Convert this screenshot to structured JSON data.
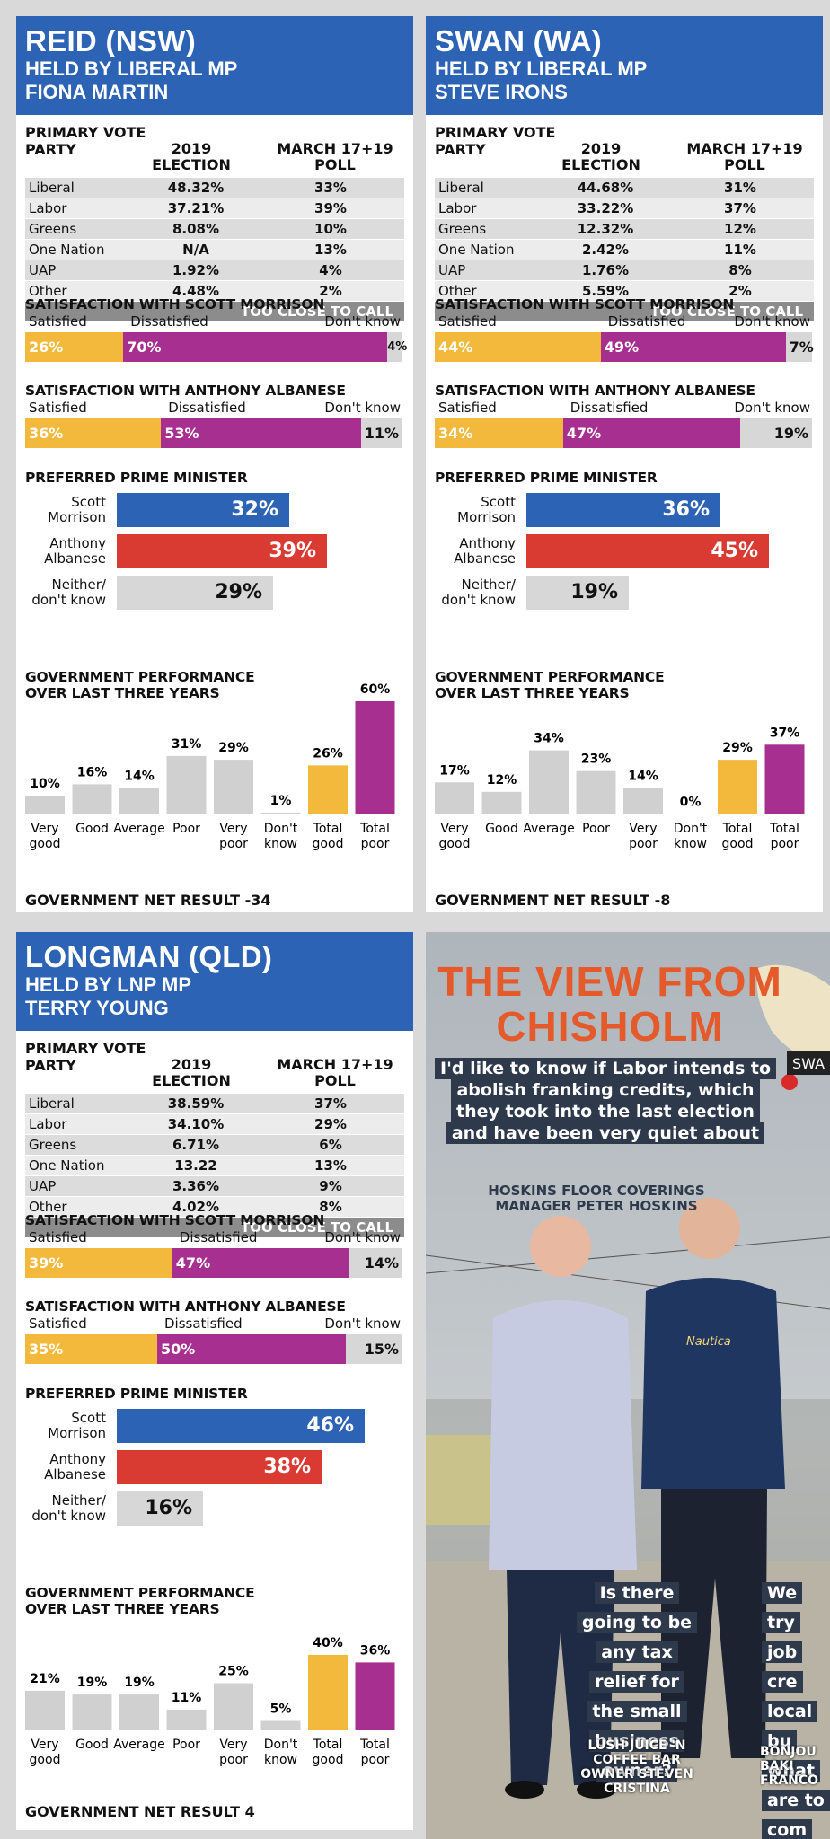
{
  "labels": {
    "primary_vote": "PRIMARY VOTE",
    "party": "PARTY",
    "col_2019": [
      "2019",
      "ELECTION"
    ],
    "col_poll": [
      "MARCH 17+19",
      "POLL"
    ],
    "too_close": "TOO CLOSE TO CALL",
    "sat_morrison": "SATISFACTION WITH SCOTT MORRISON",
    "sat_albanese": "SATISFACTION WITH ANTHONY ALBANESE",
    "satisfied": "Satisfied",
    "dissatisfied": "Dissatisfied",
    "dont_know": "Don't know",
    "ppm": "PREFERRED PRIME MINISTER",
    "ppm_names": [
      [
        "Scott",
        "Morrison"
      ],
      [
        "Anthony",
        "Albanese"
      ],
      [
        "Neither/",
        "don't know"
      ]
    ],
    "gov_perf": [
      "GOVERNMENT PERFORMANCE",
      "OVER LAST THREE YEARS"
    ],
    "gov_cats": [
      [
        "Very",
        "good"
      ],
      [
        "Good"
      ],
      [
        "Average"
      ],
      [
        "Poor"
      ],
      [
        "Very",
        "poor"
      ],
      [
        "Don't",
        "know"
      ],
      [
        "Total",
        "good"
      ],
      [
        "Total",
        "poor"
      ]
    ]
  },
  "seats": [
    {
      "title": "REID (NSW)",
      "held1": "HELD BY LIBERAL MP",
      "held2": "FIONA MARTIN",
      "parties": [
        {
          "party": "Liberal",
          "y2019": "48.32%",
          "poll": "33%"
        },
        {
          "party": "Labor",
          "y2019": "37.21%",
          "poll": "39%"
        },
        {
          "party": "Greens",
          "y2019": "8.08%",
          "poll": "10%"
        },
        {
          "party": "One Nation",
          "y2019": "N/A",
          "poll": "13%"
        },
        {
          "party": "UAP",
          "y2019": "1.92%",
          "poll": "4%"
        },
        {
          "party": "Other",
          "y2019": "4.48%",
          "poll": "2%"
        }
      ],
      "morrison": {
        "sat": 26,
        "dis": 70,
        "dk": 4
      },
      "albanese": {
        "sat": 36,
        "dis": 53,
        "dk": 11
      },
      "ppm": [
        32,
        39,
        29
      ],
      "gov": [
        10,
        16,
        14,
        31,
        29,
        1,
        26,
        60
      ],
      "net": "GOVERNMENT NET RESULT -34"
    },
    {
      "title": "SWAN (WA)",
      "held1": "HELD BY LIBERAL MP",
      "held2": "STEVE IRONS",
      "parties": [
        {
          "party": "Liberal",
          "y2019": "44.68%",
          "poll": "31%"
        },
        {
          "party": "Labor",
          "y2019": "33.22%",
          "poll": "37%"
        },
        {
          "party": "Greens",
          "y2019": "12.32%",
          "poll": "12%"
        },
        {
          "party": "One Nation",
          "y2019": "2.42%",
          "poll": "11%"
        },
        {
          "party": "UAP",
          "y2019": "1.76%",
          "poll": "8%"
        },
        {
          "party": "Other",
          "y2019": "5.59%",
          "poll": "2%"
        }
      ],
      "morrison": {
        "sat": 44,
        "dis": 49,
        "dk": 7
      },
      "albanese": {
        "sat": 34,
        "dis": 47,
        "dk": 19
      },
      "ppm": [
        36,
        45,
        19
      ],
      "gov": [
        17,
        12,
        34,
        23,
        14,
        0,
        29,
        37
      ],
      "net": "GOVERNMENT NET RESULT -8"
    },
    {
      "title": "LONGMAN (QLD)",
      "held1": "HELD BY LNP MP",
      "held2": "TERRY YOUNG",
      "parties": [
        {
          "party": "Liberal",
          "y2019": "38.59%",
          "poll": "37%"
        },
        {
          "party": "Labor",
          "y2019": "34.10%",
          "poll": "29%"
        },
        {
          "party": "Greens",
          "y2019": "6.71%",
          "poll": "6%"
        },
        {
          "party": "One Nation",
          "y2019": "13.22",
          "poll": "13%"
        },
        {
          "party": "UAP",
          "y2019": "3.36%",
          "poll": "9%"
        },
        {
          "party": "Other",
          "y2019": "4.02%",
          "poll": "8%"
        }
      ],
      "morrison": {
        "sat": 39,
        "dis": 47,
        "dk": 14
      },
      "albanese": {
        "sat": 35,
        "dis": 50,
        "dk": 15
      },
      "ppm": [
        46,
        38,
        16
      ],
      "gov": [
        21,
        19,
        19,
        11,
        25,
        5,
        40,
        36
      ],
      "net": "GOVERNMENT NET RESULT 4"
    }
  ],
  "chisholm": {
    "title1": "THE VIEW FROM",
    "title2": "CHISHOLM",
    "quote1": "I'd like to know if Labor intends to abolish franking credits, which they took into the last election and have been very quiet about",
    "attr1": [
      "HOSKINS FLOOR COVERINGS",
      "MANAGER PETER HOSKINS"
    ],
    "quote2": "Is there going to be any tax relief for the small business owner?",
    "attr2": [
      "LUSH JUICE 'N",
      "COFFEE BAR",
      "OWNER STEVEN",
      "CRISTINA"
    ],
    "quote3": "We try job cre local bu what are to com",
    "attr3": [
      "BONJOU",
      "BAKI",
      "FRANCO"
    ],
    "map_label": "SWA",
    "shirt_text": "Nautica"
  },
  "colors": {
    "blue": "#2d63b4",
    "red": "#d93b33",
    "gold": "#f3b93d",
    "purple": "#a62f8f",
    "grey": "#d7d7d7",
    "orange": "#e45a2a"
  }
}
